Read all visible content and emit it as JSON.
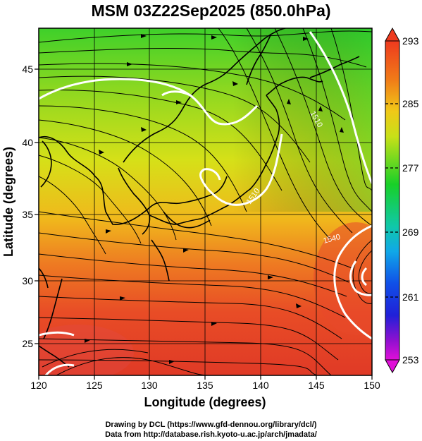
{
  "title": "MSM 03Z22Sep2025 (850.0hPa)",
  "x_axis": {
    "label": "Longitude (degrees)",
    "ticks": [
      "120",
      "125",
      "130",
      "135",
      "140",
      "145",
      "150"
    ],
    "min": 120,
    "max": 150
  },
  "y_axis": {
    "label": "Latitude  (degrees)",
    "ticks": [
      "25",
      "30",
      "35",
      "40",
      "45"
    ],
    "min": 22.4,
    "max": 47.6
  },
  "colorbar": {
    "labels": [
      "293",
      "285",
      "277",
      "269",
      "261",
      "253"
    ],
    "min": 253,
    "max": 293
  },
  "contour_labels": [
    "1510",
    "1510",
    "1540"
  ],
  "credits": {
    "line1": "Drawing by DCL (https://www.gfd-dennou.org/library/dcl/)",
    "line2": "Data from http://database.rish.kyoto-u.ac.jp/arch/jmadata/"
  },
  "colors": {
    "warm": "#e8402a",
    "mid": "#f0e020",
    "cool": "#20d020",
    "contour": "#ffffff",
    "coast": "#000000"
  }
}
